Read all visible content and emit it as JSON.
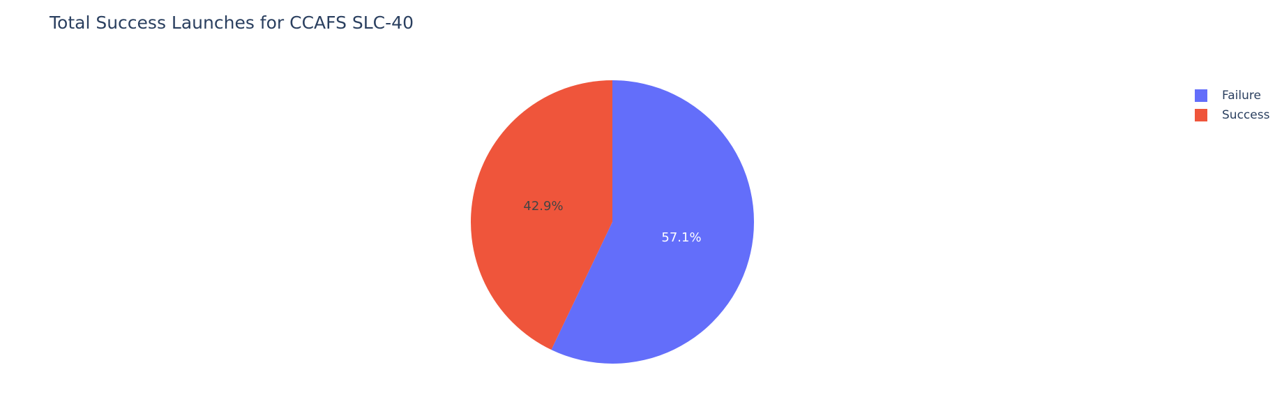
{
  "chart_data": {
    "type": "pie",
    "title": "Total Success Launches for CCAFS SLC-40",
    "labels": [
      "Failure",
      "Success"
    ],
    "values": [
      57.1,
      42.9
    ],
    "percent_labels": [
      "57.1%",
      "42.9%"
    ],
    "colors": [
      "#636efa",
      "#ef553b"
    ],
    "label_colors": [
      "#ffffff",
      "#444444"
    ],
    "direction": "clockwise",
    "start_angle": "top",
    "legend": {
      "position": "top-right",
      "entries": [
        "Failure",
        "Success"
      ]
    }
  }
}
